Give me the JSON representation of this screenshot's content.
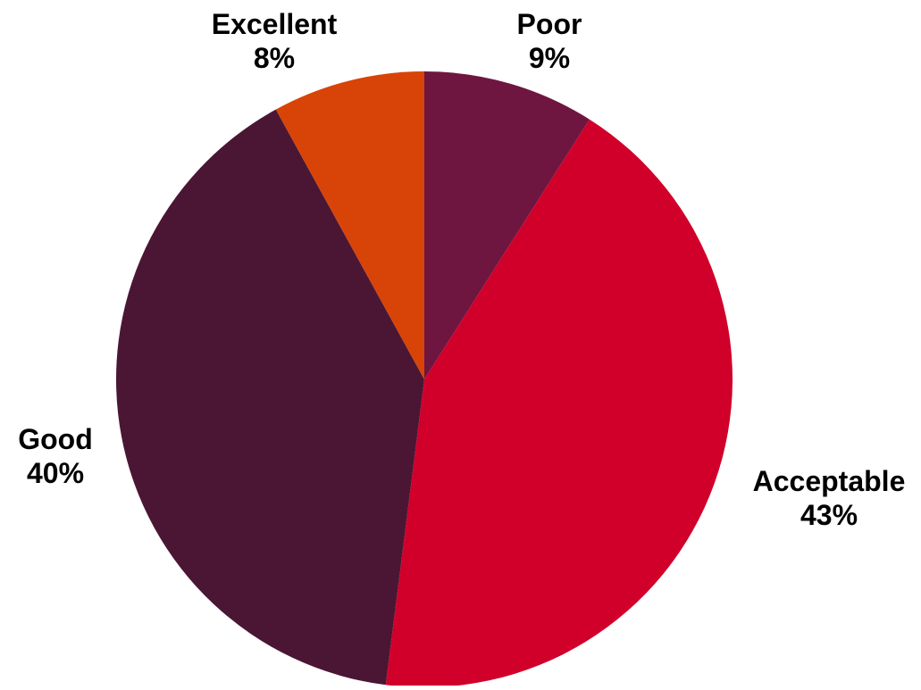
{
  "chart_data": {
    "type": "pie",
    "start_angle_deg": 0,
    "direction": "clockwise",
    "slices": [
      {
        "label": "Poor",
        "value": 9,
        "display": "9%",
        "color": "#6e1640"
      },
      {
        "label": "Acceptable",
        "value": 43,
        "display": "43%",
        "color": "#d0002a"
      },
      {
        "label": "Good",
        "value": 40,
        "display": "40%",
        "color": "#4a1634"
      },
      {
        "label": "Excellent",
        "value": 8,
        "display": "8%",
        "color": "#d84407"
      }
    ]
  }
}
